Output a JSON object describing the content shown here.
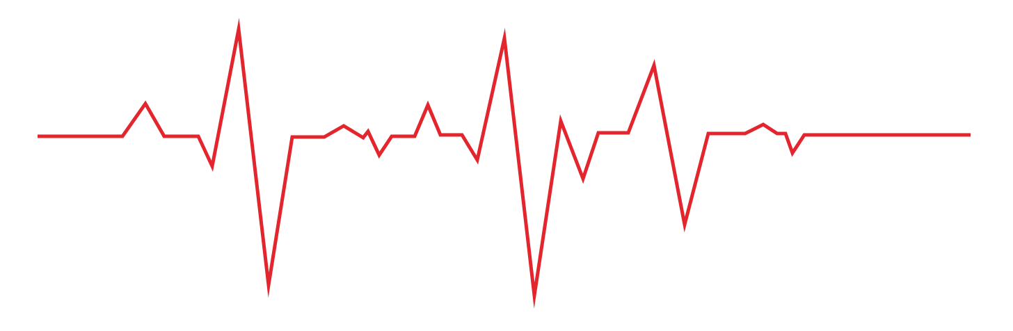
{
  "graphic": {
    "name": "heartbeat-line",
    "stroke_color": "#e3262d",
    "background_color": "#ffffff"
  }
}
